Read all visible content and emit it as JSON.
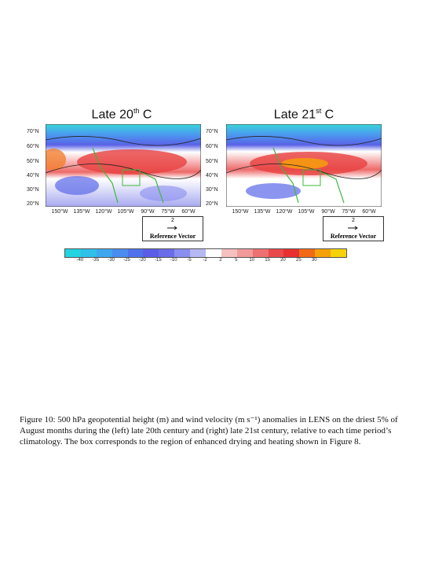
{
  "panels": [
    {
      "title_main": "Late 20",
      "title_sup": "th",
      "title_end": " C"
    },
    {
      "title_main": "Late 21",
      "title_sup": "st",
      "title_end": " C"
    }
  ],
  "lat_labels": [
    "70°N",
    "60°N",
    "50°N",
    "40°N",
    "30°N",
    "20°N"
  ],
  "lon_labels": [
    "150°W",
    "135°W",
    "120°W",
    "105°W",
    "90°W",
    "75°W",
    "60°W"
  ],
  "reference_vector": {
    "value": "2",
    "label": "Reference Vector"
  },
  "colorbar": {
    "ticks": [
      "-40",
      "-35",
      "-30",
      "-25",
      "-20",
      "-15",
      "-10",
      "-5",
      "-2",
      "2",
      "5",
      "10",
      "15",
      "20",
      "25",
      "30"
    ],
    "colors": [
      "#22d3e0",
      "#2fc0ea",
      "#3fa6f0",
      "#4a8cf0",
      "#4f72ec",
      "#5a5ee6",
      "#6a6ce8",
      "#8a8ef0",
      "#b6b8f4",
      "#ffffff",
      "#f6c0c0",
      "#f29a9a",
      "#ee7070",
      "#ea4a4a",
      "#e83030",
      "#f26a18",
      "#f5a10a",
      "#f6d20a"
    ]
  },
  "caption": "Figure 10: 500 hPa geopotential height (m) and wind velocity (m s⁻¹) anomalies in LENS on the driest 5% of August months during the (left) late 20th century and (right) late 21st century, relative to each time period’s climatology.  The box corresponds to the region of enhanced drying and heating shown in Figure 8."
}
